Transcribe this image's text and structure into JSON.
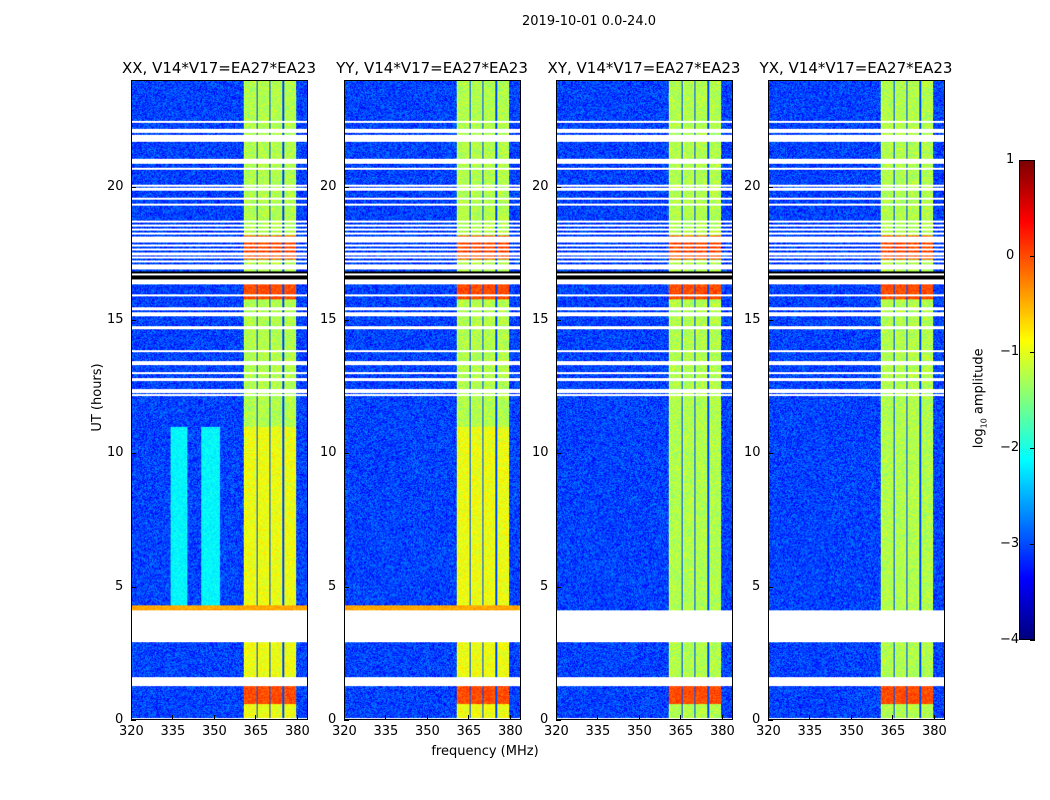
{
  "figure": {
    "title": "2019-10-01 0.0-24.0"
  },
  "chart_data": {
    "type": "heatmap",
    "title": "2019-10-01 0.0-24.0",
    "xlabel": "frequency (MHz)",
    "ylabel": "UT (hours)",
    "xlim": [
      320,
      384
    ],
    "ylim": [
      0,
      24
    ],
    "xticks": [
      320,
      335,
      350,
      365,
      380
    ],
    "yticks": [
      0,
      5,
      10,
      15,
      20
    ],
    "panels": [
      {
        "title": "XX, V14*V17=EA27*EA23",
        "cyan_stripes": true
      },
      {
        "title": "YY, V14*V17=EA27*EA23",
        "cyan_stripes": false
      },
      {
        "title": "XY, V14*V17=EA27*EA23",
        "cyan_stripes": false
      },
      {
        "title": "YX, V14*V17=EA27*EA23",
        "cyan_stripes": false
      }
    ],
    "bright_band_mhz": [
      360.5,
      380
    ],
    "band_gaps_mhz": [
      365.5,
      370.3,
      375.2
    ],
    "flagged_hours": [
      [
        3.0,
        4.1
      ],
      [
        1.4,
        1.6
      ],
      [
        16.55,
        16.85
      ],
      [
        20.9,
        21.1
      ],
      [
        21.9,
        22.0
      ],
      [
        19.9,
        20.0
      ],
      [
        17.0,
        18.8
      ]
    ],
    "colorbar": {
      "label": "log10 amplitude",
      "label_main": "log",
      "label_sub": "10",
      "label_rest": " amplitude",
      "range": [
        -4,
        1
      ],
      "ticks": [
        1,
        0,
        -1,
        -2,
        -3,
        -4
      ],
      "colormap": "jet"
    }
  }
}
